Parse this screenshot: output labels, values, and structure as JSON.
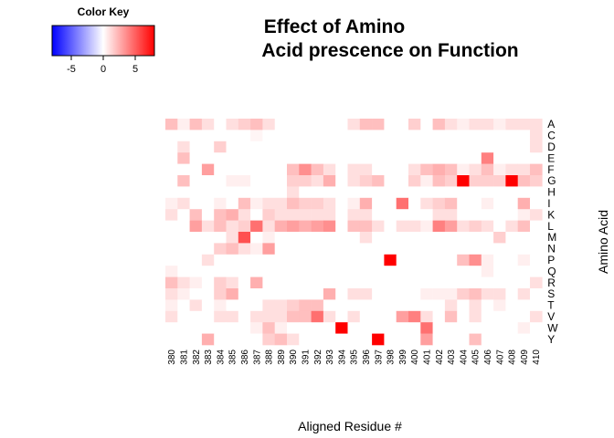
{
  "chart_data": {
    "type": "heatmap",
    "title_lines": [
      "Effect of Amino",
      "Acid prescence on Function"
    ],
    "xlabel": "Aligned Residue #",
    "ylabel": "Amino Acid",
    "x": [
      "380",
      "381",
      "382",
      "383",
      "384",
      "385",
      "386",
      "387",
      "388",
      "389",
      "390",
      "391",
      "392",
      "393",
      "394",
      "395",
      "396",
      "397",
      "398",
      "399",
      "400",
      "401",
      "402",
      "403",
      "404",
      "405",
      "406",
      "407",
      "408",
      "409",
      "410"
    ],
    "y": [
      "A",
      "C",
      "D",
      "E",
      "F",
      "G",
      "H",
      "I",
      "K",
      "L",
      "M",
      "N",
      "P",
      "Q",
      "R",
      "S",
      "T",
      "V",
      "W",
      "Y"
    ],
    "color_key": {
      "title": "Color Key",
      "range": [
        -8,
        8
      ],
      "ticks": [
        -5,
        0,
        5
      ],
      "tick_labels": [
        "-5",
        "0",
        "5"
      ],
      "low_color": "#0000ff",
      "mid_color": "#ffffff",
      "high_color": "#ff0000"
    },
    "values": [
      [
        2,
        0.5,
        2,
        1,
        0,
        1,
        1.5,
        2,
        1,
        0,
        0,
        0,
        0,
        0,
        0,
        1,
        2,
        2,
        0,
        0,
        1.5,
        0,
        2,
        1,
        0.5,
        1,
        1,
        0.5,
        1,
        1,
        1
      ],
      [
        0,
        0,
        0,
        0,
        0,
        0,
        0,
        0.3,
        0,
        0,
        0,
        0,
        0,
        0,
        0,
        0,
        0,
        0,
        0,
        0,
        0,
        0,
        0,
        0,
        0,
        0,
        0,
        0,
        0,
        0,
        1
      ],
      [
        0,
        1,
        0,
        0,
        1.5,
        0,
        0,
        0,
        0,
        0,
        0,
        0,
        0,
        0,
        0,
        0,
        0,
        0,
        0,
        0,
        0,
        0,
        0,
        0,
        0,
        0,
        0,
        0,
        0,
        0,
        1
      ],
      [
        0,
        2,
        0,
        0,
        0,
        0,
        0,
        0,
        0,
        0,
        0,
        0,
        0,
        0,
        0,
        0,
        0,
        0,
        0,
        0,
        0,
        0,
        0,
        0,
        0,
        0,
        4,
        0,
        0,
        0,
        0
      ],
      [
        0,
        0,
        0,
        3,
        0,
        0,
        0,
        0,
        0,
        0,
        2,
        3.5,
        2,
        1,
        0,
        1,
        1,
        0,
        0,
        0,
        1,
        2,
        2.5,
        2,
        0.5,
        1,
        2,
        0.5,
        1,
        1,
        2
      ],
      [
        0,
        2,
        0,
        0,
        0,
        0.5,
        0.5,
        0,
        0,
        0,
        1.5,
        1.5,
        1,
        2.5,
        0,
        1,
        1.5,
        2,
        0,
        0,
        1.5,
        0.5,
        2,
        1.5,
        8,
        1.5,
        1.5,
        1.5,
        8,
        2,
        1.5
      ],
      [
        0,
        0,
        0,
        0,
        0,
        0,
        0,
        0,
        0,
        0,
        1,
        0,
        0,
        0,
        0,
        0,
        0,
        0,
        0,
        0,
        0,
        0,
        0,
        0,
        0,
        0,
        0,
        0,
        0,
        0,
        0
      ],
      [
        0.5,
        1,
        0,
        0,
        0.5,
        0,
        2,
        0.5,
        1,
        1,
        2,
        1.5,
        1.5,
        1,
        0,
        0.5,
        2.5,
        0,
        0,
        4.5,
        0,
        1,
        1.5,
        2,
        0,
        0,
        0.5,
        0,
        0,
        2.5,
        0
      ],
      [
        1,
        0,
        2,
        0,
        2,
        2.5,
        1,
        0,
        1.5,
        1,
        1,
        1,
        1,
        1,
        0,
        1,
        1,
        0,
        0,
        0,
        0,
        0,
        1,
        1,
        0,
        0,
        0,
        0,
        0,
        0.5,
        1
      ],
      [
        0,
        0,
        3,
        1,
        2,
        1,
        1.5,
        4.5,
        1,
        2.5,
        3,
        2.5,
        3,
        3.5,
        0,
        2,
        2,
        1,
        0,
        1,
        1,
        0.5,
        4,
        3,
        1,
        1.5,
        1,
        0,
        1,
        2,
        0
      ],
      [
        0,
        0,
        0,
        0,
        0,
        1,
        5.5,
        0,
        0.5,
        0,
        0,
        0,
        0,
        0,
        0,
        0,
        1,
        0,
        0,
        0,
        0,
        0,
        0,
        0,
        0,
        0,
        0,
        1.5,
        0,
        0,
        0
      ],
      [
        0,
        0,
        0,
        0,
        1.5,
        2,
        1,
        0.5,
        3,
        0,
        0,
        0,
        0,
        0,
        0,
        0,
        0,
        0,
        0,
        0,
        0,
        0,
        0,
        0,
        0,
        0,
        0,
        0,
        0,
        0,
        0
      ],
      [
        0,
        0,
        0,
        1,
        0,
        0,
        0,
        0,
        0,
        0,
        0,
        0,
        0,
        0,
        0,
        0,
        0,
        0,
        8,
        0,
        0,
        0,
        0,
        0,
        2,
        3.5,
        0.5,
        0,
        0,
        0.5,
        0
      ],
      [
        0.5,
        0,
        0,
        0,
        0,
        0,
        0,
        0,
        0,
        0,
        0,
        0,
        0,
        0,
        0,
        0,
        0,
        0,
        0,
        0,
        0,
        0,
        0,
        0,
        0,
        0,
        0.5,
        0,
        0,
        0,
        0
      ],
      [
        2,
        1,
        0.5,
        0,
        1.5,
        1,
        0,
        2.5,
        0,
        0,
        0,
        0,
        0,
        0,
        0,
        0,
        0,
        0,
        0,
        0,
        0,
        0,
        0,
        0,
        0,
        0,
        0,
        0,
        0,
        0,
        1
      ],
      [
        1,
        0.5,
        0,
        0,
        1.5,
        2.5,
        0,
        0,
        0,
        0,
        0,
        0,
        0,
        2.5,
        0,
        1,
        1,
        0,
        0,
        0,
        0,
        0.5,
        0.5,
        0.5,
        1.5,
        2,
        1,
        1,
        0,
        1,
        0
      ],
      [
        0.5,
        0,
        1,
        0,
        0.5,
        0,
        0,
        0,
        1,
        1,
        1.5,
        2,
        2,
        0,
        0,
        0,
        0,
        0,
        0,
        0,
        0,
        0,
        0,
        1,
        0,
        1,
        0,
        0.5,
        0,
        0,
        0
      ],
      [
        1,
        0,
        0,
        0,
        1,
        1,
        0,
        1,
        1,
        1,
        2,
        2,
        4.5,
        1,
        0,
        1,
        0,
        0,
        0,
        3,
        4,
        1,
        0,
        2,
        0,
        1,
        0,
        0,
        0,
        0,
        1
      ],
      [
        0,
        0,
        0,
        0,
        0,
        0,
        0,
        0.5,
        2,
        0.5,
        0,
        0,
        0,
        0,
        8,
        0,
        0,
        0,
        0,
        0,
        0,
        4.5,
        0,
        0,
        0,
        0,
        0,
        0,
        0,
        0.5,
        0
      ],
      [
        0,
        0,
        0,
        2.5,
        0,
        0,
        0,
        0,
        1.5,
        2,
        1,
        0,
        0,
        0,
        0,
        0,
        0,
        8,
        0,
        0,
        0,
        3,
        0,
        0,
        0,
        2,
        0,
        0,
        0,
        0,
        0
      ]
    ]
  }
}
